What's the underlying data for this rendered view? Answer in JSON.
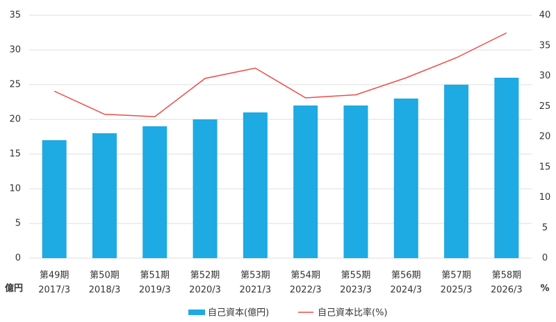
{
  "chart_data": {
    "type": "bar_line",
    "categories": [
      [
        "第49期",
        "2017/3"
      ],
      [
        "第50期",
        "2018/3"
      ],
      [
        "第51期",
        "2019/3"
      ],
      [
        "第52期",
        "2020/3"
      ],
      [
        "第53期",
        "2021/3"
      ],
      [
        "第54期",
        "2022/3"
      ],
      [
        "第55期",
        "2023/3"
      ],
      [
        "第56期",
        "2024/3"
      ],
      [
        "第57期",
        "2025/3"
      ],
      [
        "第58期",
        "2026/3"
      ]
    ],
    "series": [
      {
        "name": "自己資本(億円)",
        "type": "bar",
        "color": "#1eaae2",
        "values": [
          17,
          18,
          19,
          20,
          21,
          22,
          22,
          23,
          25,
          26
        ]
      },
      {
        "name": "自己資本比率(%)",
        "type": "line",
        "axis": "y2",
        "color": "#f04848",
        "values": [
          27.5,
          23.7,
          23.3,
          29.6,
          31.3,
          26.4,
          26.9,
          29.7,
          33.0,
          37.1
        ]
      }
    ],
    "ylabel": "億円",
    "y2label": "%",
    "ylim": [
      0,
      35
    ],
    "yticks": [
      0,
      5,
      10,
      15,
      20,
      25,
      30,
      35
    ],
    "y2lim": [
      0,
      40
    ],
    "y2ticks": [
      0,
      5,
      10,
      15,
      20,
      25,
      30,
      35,
      40
    ],
    "grid": true
  }
}
